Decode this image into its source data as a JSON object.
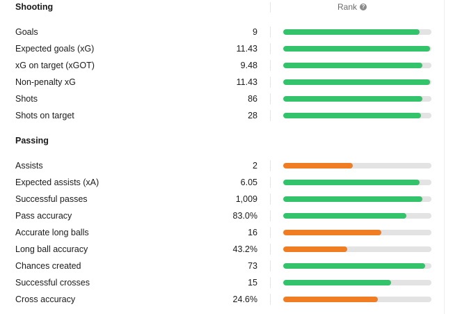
{
  "header": {
    "rank_label": "Rank",
    "help_icon": "?"
  },
  "colors": {
    "green": "#33c36a",
    "orange": "#f07d22",
    "track": "#e3e3e3"
  },
  "sections": [
    {
      "title": "Shooting",
      "rows": [
        {
          "label": "Goals",
          "value": "9",
          "rank_fill": 0.92,
          "color": "green"
        },
        {
          "label": "Expected goals (xG)",
          "value": "11.43",
          "rank_fill": 0.99,
          "color": "green"
        },
        {
          "label": "xG on target (xGOT)",
          "value": "9.48",
          "rank_fill": 0.94,
          "color": "green"
        },
        {
          "label": "Non-penalty xG",
          "value": "11.43",
          "rank_fill": 0.99,
          "color": "green"
        },
        {
          "label": "Shots",
          "value": "86",
          "rank_fill": 0.94,
          "color": "green"
        },
        {
          "label": "Shots on target",
          "value": "28",
          "rank_fill": 0.93,
          "color": "green"
        }
      ]
    },
    {
      "title": "Passing",
      "rows": [
        {
          "label": "Assists",
          "value": "2",
          "rank_fill": 0.47,
          "color": "orange"
        },
        {
          "label": "Expected assists (xA)",
          "value": "6.05",
          "rank_fill": 0.92,
          "color": "green"
        },
        {
          "label": "Successful passes",
          "value": "1,009",
          "rank_fill": 0.94,
          "color": "green"
        },
        {
          "label": "Pass accuracy",
          "value": "83.0%",
          "rank_fill": 0.83,
          "color": "green"
        },
        {
          "label": "Accurate long balls",
          "value": "16",
          "rank_fill": 0.66,
          "color": "orange"
        },
        {
          "label": "Long ball accuracy",
          "value": "43.2%",
          "rank_fill": 0.43,
          "color": "orange"
        },
        {
          "label": "Chances created",
          "value": "73",
          "rank_fill": 0.96,
          "color": "green"
        },
        {
          "label": "Successful crosses",
          "value": "15",
          "rank_fill": 0.73,
          "color": "green"
        },
        {
          "label": "Cross accuracy",
          "value": "24.6%",
          "rank_fill": 0.64,
          "color": "orange"
        }
      ]
    }
  ]
}
